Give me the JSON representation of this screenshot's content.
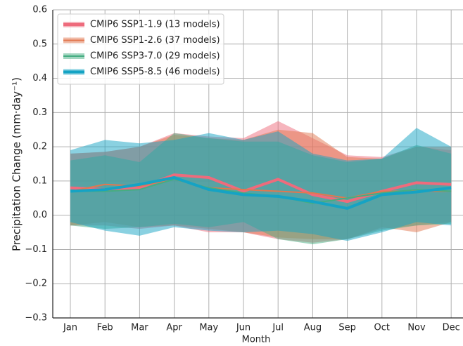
{
  "chart_data": {
    "type": "line_band",
    "x_label": "Month",
    "y_label": "Precipitation Change (mm·day⁻¹)",
    "categories": [
      "Jan",
      "Feb",
      "Mar",
      "Apr",
      "May",
      "Jun",
      "Jul",
      "Aug",
      "Sep",
      "Oct",
      "Nov",
      "Dec"
    ],
    "ylim": [
      -0.3,
      0.6
    ],
    "yticks": [
      {
        "value": -0.3,
        "label": "−0.3"
      },
      {
        "value": -0.2,
        "label": "−0.2"
      },
      {
        "value": -0.1,
        "label": "−0.1"
      },
      {
        "value": 0,
        "label": "0.0"
      },
      0.1,
      0.2,
      0.3,
      0.4,
      0.5,
      0.6
    ],
    "grid": true,
    "legend": "upper left",
    "series": [
      {
        "name": "CMIP6 SSP1-1.9 (13 models)",
        "color": "#ee6b7c",
        "linewidth": 4,
        "values": [
          0.08,
          0.075,
          0.08,
          0.118,
          0.11,
          0.07,
          0.105,
          0.06,
          0.04,
          0.07,
          0.095,
          0.09
        ],
        "upper": [
          0.18,
          0.185,
          0.2,
          0.24,
          0.23,
          0.225,
          0.275,
          0.225,
          0.175,
          0.17,
          0.2,
          0.19
        ],
        "lower": [
          -0.03,
          -0.03,
          -0.04,
          -0.03,
          -0.05,
          -0.05,
          -0.07,
          -0.08,
          -0.07,
          -0.04,
          -0.03,
          -0.02
        ]
      },
      {
        "name": "CMIP6 SSP1-2.6 (37 models)",
        "color": "#e2774f",
        "linewidth": 2,
        "values": [
          0.07,
          0.09,
          0.085,
          0.105,
          0.08,
          0.075,
          0.07,
          0.065,
          0.05,
          0.07,
          0.07,
          0.07
        ],
        "upper": [
          0.18,
          0.185,
          0.2,
          0.235,
          0.225,
          0.22,
          0.25,
          0.24,
          0.17,
          0.165,
          0.2,
          0.2
        ],
        "lower": [
          -0.03,
          -0.02,
          -0.035,
          -0.03,
          -0.04,
          -0.05,
          -0.065,
          -0.07,
          -0.07,
          -0.035,
          -0.05,
          -0.02
        ]
      },
      {
        "name": "CMIP6 SSP3-7.0 (29 models)",
        "color": "#45ad82",
        "linewidth": 2,
        "values": [
          0.07,
          0.07,
          0.075,
          0.105,
          0.08,
          0.065,
          0.055,
          0.035,
          0.05,
          0.065,
          0.075,
          0.07
        ],
        "upper": [
          0.16,
          0.175,
          0.155,
          0.24,
          0.225,
          0.215,
          0.215,
          0.175,
          0.155,
          0.165,
          0.205,
          0.18
        ],
        "lower": [
          -0.03,
          -0.04,
          -0.035,
          -0.025,
          -0.035,
          -0.02,
          -0.07,
          -0.085,
          -0.07,
          -0.045,
          -0.03,
          -0.025
        ]
      },
      {
        "name": "CMIP6 SSP5-8.5 (46 models)",
        "color": "#15a3c4",
        "linewidth": 4,
        "values": [
          0.07,
          0.075,
          0.09,
          0.11,
          0.075,
          0.06,
          0.055,
          0.04,
          0.02,
          0.06,
          0.068,
          0.08
        ],
        "upper": [
          0.19,
          0.22,
          0.21,
          0.22,
          0.24,
          0.22,
          0.245,
          0.18,
          0.16,
          0.165,
          0.255,
          0.2
        ],
        "lower": [
          -0.02,
          -0.045,
          -0.06,
          -0.035,
          -0.045,
          -0.05,
          -0.045,
          -0.055,
          -0.075,
          -0.05,
          -0.02,
          -0.03
        ]
      }
    ]
  }
}
